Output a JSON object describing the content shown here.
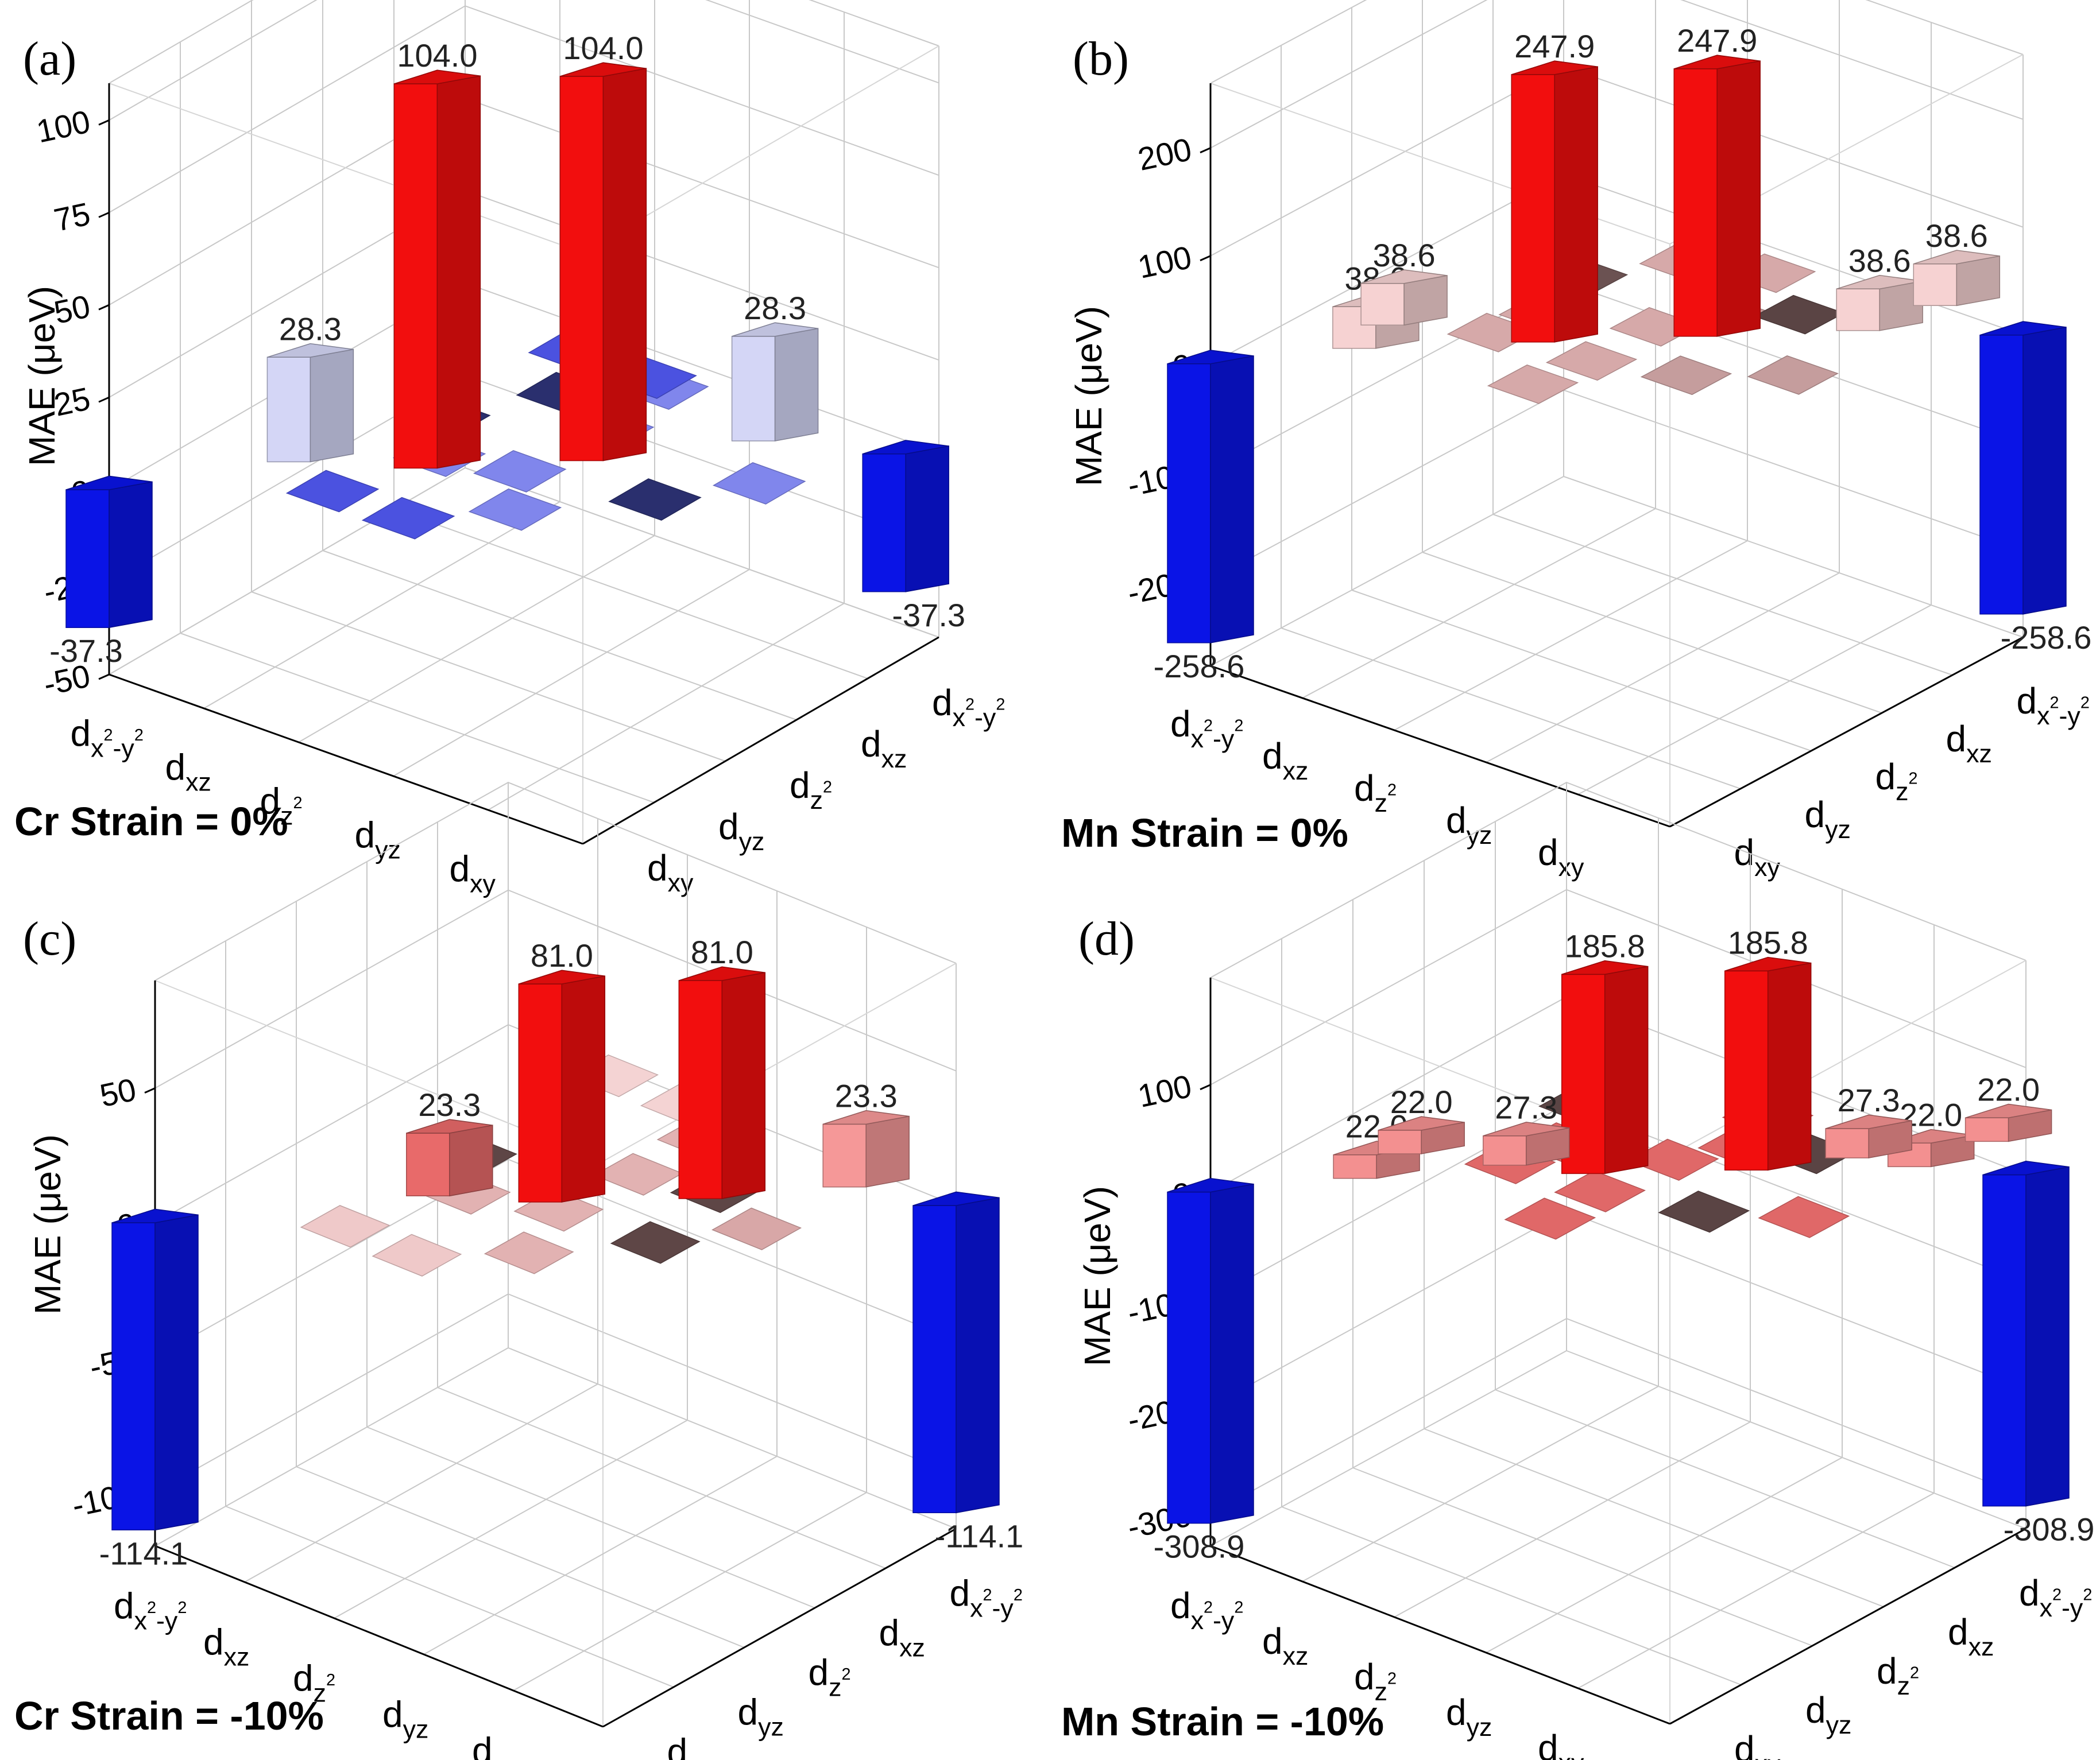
{
  "figure": {
    "description_free": true
  },
  "orbitals": [
    {
      "base": "d",
      "sub": "x",
      "sup": "2",
      "sub2": "-y",
      "sup2": "2",
      "id": "dx2-y2"
    },
    {
      "base": "d",
      "sub": "xz",
      "id": "dxz"
    },
    {
      "base": "d",
      "sub": "z",
      "sup": "2",
      "id": "dz2"
    },
    {
      "base": "d",
      "sub": "yz",
      "id": "dyz"
    },
    {
      "base": "d",
      "sub": "xy",
      "id": "dxy"
    }
  ],
  "chart_data": [
    {
      "panel": "(a)",
      "type": "bar3d",
      "title": "Cr Strain = 0%",
      "ylabel": "MAE (μeV)",
      "ylim": [
        -50,
        110
      ],
      "yticks": [
        -50,
        -25,
        0,
        25,
        50,
        75,
        100
      ],
      "xlabels": [
        "dx2-y2",
        "dxz",
        "dz2",
        "dyz",
        "dxy"
      ],
      "zlabels": [
        "dx2-y2",
        "dxz",
        "dz2",
        "dyz",
        "dxy"
      ],
      "bars": [
        {
          "row": "dx2-y2",
          "col": "dx2-y2",
          "value": -37.3,
          "label": "-37.3",
          "color": "#0a14e6"
        },
        {
          "row": "dx2-y2",
          "col": "dxz",
          "value": 28.3,
          "label": "28.3",
          "color": "#d4d6f6"
        },
        {
          "row": "dx2-y2",
          "col": "dyz",
          "value": 104.0,
          "label": "104.0",
          "color": "#f20e0e"
        },
        {
          "row": "dxz",
          "col": "dx2-y2",
          "value": 104.0,
          "label": "104.0",
          "color": "#f20e0e"
        },
        {
          "row": "dz2",
          "col": "dx2-y2",
          "value": 28.3,
          "label": "28.3",
          "color": "#d4d6f6"
        },
        {
          "row": "dxy",
          "col": "dx2-y2",
          "value": -37.3,
          "label": "-37.3",
          "color": "#0a14e6"
        }
      ]
    },
    {
      "panel": "(b)",
      "type": "bar3d",
      "title": "Mn Strain = 0%",
      "ylabel": "MAE (μeV)",
      "ylim": [
        -280,
        260
      ],
      "yticks": [
        -200,
        -100,
        0,
        100,
        200
      ],
      "xlabels": [
        "dx2-y2",
        "dxz",
        "dz2",
        "dyz",
        "dxy"
      ],
      "zlabels": [
        "dx2-y2",
        "dxz",
        "dz2",
        "dyz",
        "dxy"
      ],
      "bars": [
        {
          "value": -258.6,
          "label": "-258.6",
          "color": "#0a14e6"
        },
        {
          "value": 38.6,
          "label": "38.6",
          "color": "#f6d2d2"
        },
        {
          "value": 38.6,
          "label": "38.6",
          "color": "#f6d2d2"
        },
        {
          "value": 247.9,
          "label": "247.9",
          "color": "#f20e0e"
        },
        {
          "value": 247.9,
          "label": "247.9",
          "color": "#f20e0e"
        },
        {
          "value": 38.6,
          "label": "38.6",
          "color": "#f6d2d2"
        },
        {
          "value": 38.6,
          "label": "38.6",
          "color": "#f6d2d2"
        },
        {
          "value": -258.6,
          "label": "-258.6",
          "color": "#0a14e6"
        }
      ]
    },
    {
      "panel": "(c)",
      "type": "bar3d",
      "title": "Cr Strain = -10%",
      "ylabel": "MAE (μeV)",
      "ylim": [
        -120,
        90
      ],
      "yticks": [
        -100,
        -50,
        0,
        50
      ],
      "xlabels": [
        "dx2-y2",
        "dxz",
        "dz2",
        "dyz",
        "dxy"
      ],
      "zlabels": [
        "dx2-y2",
        "dxz",
        "dz2",
        "dyz",
        "dxy"
      ],
      "bars": [
        {
          "value": -114.1,
          "label": "-114.1",
          "color": "#0a14e6"
        },
        {
          "value": 23.3,
          "label": "23.3",
          "color": "#e86a6a"
        },
        {
          "value": 81.0,
          "label": "81.0",
          "color": "#f20e0e"
        },
        {
          "value": 81.0,
          "label": "81.0",
          "color": "#f20e0e"
        },
        {
          "value": 23.3,
          "label": "23.3",
          "color": "#f59898"
        },
        {
          "value": -114.1,
          "label": "-114.1",
          "color": "#0a14e6"
        }
      ]
    },
    {
      "panel": "(d)",
      "type": "bar3d",
      "title": "Mn Strain = -10%",
      "ylabel": "MAE (μeV)",
      "ylim": [
        -330,
        200
      ],
      "yticks": [
        -300,
        -200,
        -100,
        0,
        100
      ],
      "xlabels": [
        "dx2-y2",
        "dxz",
        "dz2",
        "dyz",
        "dxy"
      ],
      "zlabels": [
        "dx2-y2",
        "dxz",
        "dz2",
        "dyz",
        "dxy"
      ],
      "bars": [
        {
          "value": -308.9,
          "label": "-308.9",
          "color": "#0a14e6"
        },
        {
          "value": 22.0,
          "label": "22.0",
          "color": "#f39090"
        },
        {
          "value": 22.0,
          "label": "22.0",
          "color": "#f39090"
        },
        {
          "value": 27.3,
          "label": "27.3",
          "color": "#f39090"
        },
        {
          "value": 185.8,
          "label": "185.8",
          "color": "#f20e0e"
        },
        {
          "value": 185.8,
          "label": "185.8",
          "color": "#f20e0e"
        },
        {
          "value": 27.3,
          "label": "27.3",
          "color": "#f39090"
        },
        {
          "value": 22.0,
          "label": "22.0",
          "color": "#f39090"
        },
        {
          "value": 22.0,
          "label": "22.0",
          "color": "#f39090"
        },
        {
          "value": -308.9,
          "label": "-308.9",
          "color": "#0a14e6"
        }
      ]
    }
  ]
}
